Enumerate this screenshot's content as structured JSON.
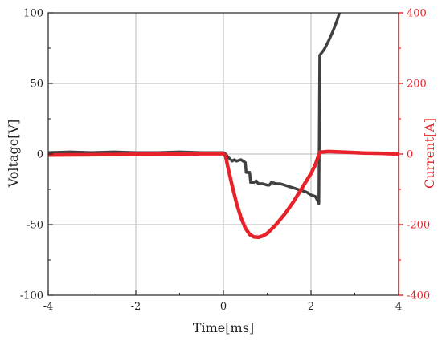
{
  "chart_data": {
    "type": "line",
    "xlabel": "Time[ms]",
    "ylabel_left": "Voltage[V]",
    "ylabel_right": "Current[A]",
    "xlim": [
      -4,
      4
    ],
    "ylim_left": [
      -100,
      100
    ],
    "ylim_right": [
      -400,
      400
    ],
    "grid": true,
    "x_ticks": [
      -4,
      -2,
      0,
      2,
      4
    ],
    "x_tick_labels": [
      "-4",
      "-2",
      "0",
      "2",
      "4"
    ],
    "y_left_ticks": [
      -100,
      -50,
      0,
      50,
      100
    ],
    "y_left_tick_labels": [
      "-100",
      "-50",
      "0",
      "50",
      "100"
    ],
    "y_right_ticks": [
      -400,
      -200,
      0,
      200,
      400
    ],
    "y_right_tick_labels": [
      "-400",
      "-200",
      "0",
      "200",
      "400"
    ],
    "left_axis_color": "#222222",
    "right_axis_color": "#e8222a",
    "series": [
      {
        "axis": "left",
        "color": "#404040",
        "x": [
          -4,
          -3.5,
          -3,
          -2.5,
          -2,
          -1.5,
          -1,
          -0.5,
          0,
          0.05,
          0.1,
          0.2,
          0.25,
          0.3,
          0.4,
          0.5,
          0.52,
          0.6,
          0.62,
          0.7,
          0.75,
          0.8,
          0.9,
          1.0,
          1.05,
          1.1,
          1.2,
          1.3,
          1.4,
          1.5,
          1.6,
          1.7,
          1.8,
          1.9,
          2.0,
          2.1,
          2.15,
          2.18,
          2.2,
          2.3,
          2.4,
          2.5,
          2.6,
          2.65
        ],
        "y": [
          1,
          1.5,
          1,
          1.5,
          1,
          1,
          1.5,
          1,
          1,
          0,
          -2,
          -5,
          -4,
          -5,
          -4,
          -6,
          -13,
          -13,
          -20,
          -20,
          -19,
          -21,
          -21,
          -22,
          -22,
          -20,
          -21,
          -21,
          -22,
          -23,
          -24,
          -25,
          -26,
          -27,
          -29,
          -30,
          -33,
          -35,
          70,
          74,
          80,
          87,
          95,
          100
        ]
      },
      {
        "axis": "right",
        "color": "#e8222a",
        "x": [
          -4,
          -3,
          -2,
          -1,
          -0.5,
          0,
          0.05,
          0.1,
          0.2,
          0.3,
          0.4,
          0.5,
          0.6,
          0.7,
          0.8,
          0.9,
          1.0,
          1.2,
          1.4,
          1.6,
          1.8,
          2.0,
          2.1,
          2.15,
          2.2,
          2.4,
          2.8,
          3.2,
          3.6,
          4.0
        ],
        "y": [
          -3,
          -2,
          -1,
          0,
          1,
          1,
          -5,
          -35,
          -90,
          -140,
          -180,
          -210,
          -228,
          -235,
          -236,
          -232,
          -225,
          -200,
          -170,
          -135,
          -95,
          -55,
          -30,
          -12,
          5,
          7,
          5,
          3,
          2,
          0
        ]
      }
    ]
  }
}
